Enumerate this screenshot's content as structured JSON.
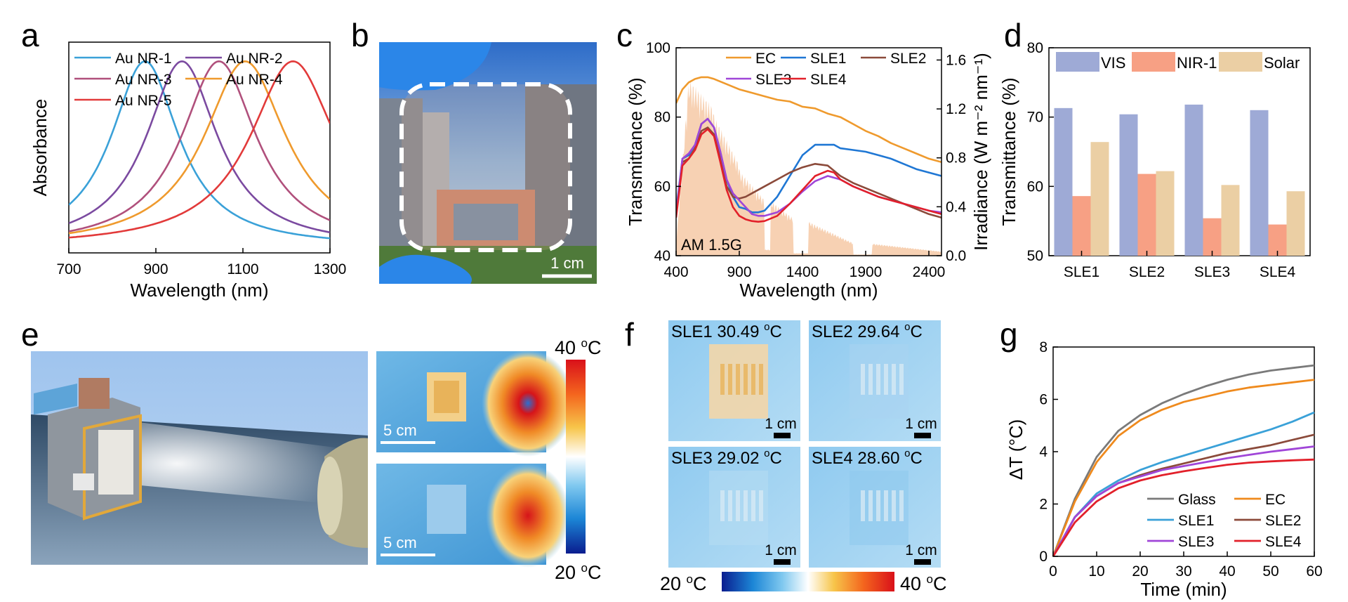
{
  "panels": {
    "a": {
      "label": "a",
      "chart_data": {
        "type": "line",
        "xlabel": "Wavelength (nm)",
        "ylabel": "Absorbance",
        "xlim": [
          700,
          1300
        ],
        "ylim": [
          0,
          1.1
        ],
        "xticks": [
          "700",
          "900",
          "1100",
          "1300"
        ],
        "series": [
          {
            "name": "Au NR-1",
            "color": "#3aa1d8",
            "peak": 875,
            "width": 95
          },
          {
            "name": "Au NR-2",
            "color": "#7b4aa0",
            "peak": 960,
            "width": 100
          },
          {
            "name": "Au NR-3",
            "color": "#b0507c",
            "peak": 1045,
            "width": 105
          },
          {
            "name": "Au NR-4",
            "color": "#ef9a2d",
            "peak": 1105,
            "width": 115
          },
          {
            "name": "Au NR-5",
            "color": "#e23a3a",
            "peak": 1215,
            "width": 120
          }
        ]
      }
    },
    "b": {
      "label": "b",
      "scale_label": "1 cm"
    },
    "c": {
      "label": "c",
      "chart_data": {
        "type": "line",
        "xlabel": "Wavelength (nm)",
        "ylabel": "Transmittance (%)",
        "y2label": "Irradiance (W m⁻² nm⁻¹)",
        "xlim": [
          400,
          2500
        ],
        "ylim": [
          40,
          100
        ],
        "y2lim": [
          0,
          1.7
        ],
        "xticks": [
          "400",
          "900",
          "1400",
          "1900",
          "2400"
        ],
        "yticks": [
          "40",
          "60",
          "80",
          "100"
        ],
        "y2ticks": [
          "0.0",
          "0.4",
          "0.8",
          "1.2",
          "1.6"
        ],
        "annotation": "AM 1.5G",
        "series": [
          {
            "name": "EC",
            "color": "#ef9a2d",
            "x": [
              400,
              450,
              500,
              550,
              600,
              650,
              700,
              800,
              900,
              1000,
              1100,
              1200,
              1300,
              1400,
              1500,
              1600,
              1700,
              1800,
              1900,
              2000,
              2100,
              2200,
              2300,
              2400,
              2500
            ],
            "y": [
              84,
              88,
              90,
              91,
              91.5,
              91.5,
              91,
              89.5,
              88,
              87,
              86,
              85,
              84.5,
              83,
              82.5,
              81,
              80,
              78,
              76,
              74.5,
              72.5,
              71,
              69.5,
              68,
              67
            ]
          },
          {
            "name": "SLE1",
            "color": "#1f77d4",
            "x": [
              400,
              450,
              500,
              550,
              600,
              650,
              700,
              750,
              800,
              850,
              900,
              950,
              1000,
              1050,
              1100,
              1200,
              1300,
              1400,
              1500,
              1600,
              1650,
              1700,
              1800,
              1900,
              2000,
              2100,
              2200,
              2300,
              2400,
              2500
            ],
            "y": [
              53,
              68,
              69,
              72,
              78,
              79.5,
              77,
              70,
              62,
              57,
              54,
              53.5,
              52.5,
              52.5,
              53,
              57,
              63,
              69,
              72,
              72,
              72,
              71,
              70.5,
              70,
              69,
              68,
              66.5,
              65,
              64,
              63
            ]
          },
          {
            "name": "SLE2",
            "color": "#8b4a3a",
            "x": [
              400,
              450,
              500,
              550,
              600,
              650,
              700,
              750,
              800,
              850,
              900,
              950,
              1000,
              1100,
              1200,
              1300,
              1400,
              1500,
              1600,
              1700,
              1800,
              1900,
              2000,
              2100,
              2200,
              2300,
              2400,
              2500
            ],
            "y": [
              52,
              67,
              68,
              71,
              76,
              77,
              75,
              68,
              60,
              57,
              56.5,
              57,
              58,
              60,
              62,
              64,
              65.5,
              66.5,
              66,
              63,
              61,
              59.5,
              58,
              56.5,
              55,
              53.5,
              52,
              51
            ]
          },
          {
            "name": "SLE3",
            "color": "#a046d8",
            "x": [
              400,
              450,
              500,
              550,
              600,
              650,
              700,
              750,
              800,
              850,
              900,
              950,
              1000,
              1050,
              1100,
              1200,
              1300,
              1400,
              1500,
              1600,
              1700,
              1800,
              1900,
              2000,
              2100,
              2200,
              2300,
              2400,
              2500
            ],
            "y": [
              52,
              68,
              69.5,
              72,
              78,
              79.5,
              77,
              70,
              62,
              58,
              56,
              54,
              52,
              51.5,
              51.5,
              52.5,
              55,
              58.5,
              61.5,
              63,
              62,
              60,
              58.5,
              57,
              56,
              55,
              54,
              53,
              52.5
            ]
          },
          {
            "name": "SLE4",
            "color": "#e2202a",
            "x": [
              400,
              450,
              500,
              550,
              600,
              650,
              700,
              750,
              800,
              850,
              900,
              950,
              1000,
              1050,
              1100,
              1200,
              1300,
              1400,
              1500,
              1600,
              1650,
              1700,
              1800,
              1900,
              2000,
              2100,
              2200,
              2300,
              2400,
              2500
            ],
            "y": [
              51,
              66,
              68,
              70.5,
              75,
              76.5,
              74.5,
              67,
              59,
              54,
              51.5,
              50.5,
              50,
              49.8,
              50,
              51.5,
              55,
              59,
              63,
              64.5,
              64,
              62,
              60,
              58.5,
              57,
              56,
              55,
              54,
              53,
              52
            ]
          }
        ]
      }
    },
    "d": {
      "label": "d",
      "chart_data": {
        "type": "bar",
        "ylabel": "Transmittance (%)",
        "ylim": [
          50,
          80
        ],
        "yticks": [
          "50",
          "60",
          "70",
          "80"
        ],
        "categories": [
          "SLE1",
          "SLE2",
          "SLE3",
          "SLE4"
        ],
        "series": [
          {
            "name": "VIS",
            "color": "#9eaad6",
            "values": [
              71.3,
              70.4,
              71.8,
              71.0
            ]
          },
          {
            "name": "NIR-1",
            "color": "#f7a084",
            "values": [
              58.6,
              61.8,
              55.4,
              54.5
            ]
          },
          {
            "name": "Solar",
            "color": "#ebcfa4",
            "values": [
              66.4,
              62.2,
              60.2,
              59.3
            ]
          }
        ]
      }
    },
    "e": {
      "label": "e",
      "scale_top": "5 cm",
      "scale_bottom": "5 cm",
      "colorbar_max": "40 ",
      "colorbar_min": "20 ",
      "unit_o": "o",
      "unit_c": "C"
    },
    "f": {
      "label": "f",
      "tiles": [
        {
          "sample": "SLE1",
          "temp": "30.49 ",
          "scale": "1 cm"
        },
        {
          "sample": "SLE2",
          "temp": "29.64 ",
          "scale": "1 cm"
        },
        {
          "sample": "SLE3",
          "temp": "29.02 ",
          "scale": "1 cm"
        },
        {
          "sample": "SLE4",
          "temp": "28.60 ",
          "scale": "1 cm"
        }
      ],
      "colorbar_min": "20 ",
      "colorbar_max": "40 ",
      "unit_o": "o",
      "unit_c": "C"
    },
    "g": {
      "label": "g",
      "chart_data": {
        "type": "line",
        "xlabel": "Time (min)",
        "ylabel": "ΔT (°C)",
        "xlim": [
          0,
          60
        ],
        "ylim": [
          0,
          8
        ],
        "xticks": [
          "0",
          "10",
          "20",
          "30",
          "40",
          "50",
          "60"
        ],
        "yticks": [
          "0",
          "2",
          "4",
          "6",
          "8"
        ],
        "series": [
          {
            "name": "Glass",
            "color": "#7a7a7a",
            "x": [
              0,
              5,
              10,
              15,
              20,
              25,
              30,
              35,
              40,
              45,
              50,
              55,
              60
            ],
            "y": [
              0,
              2.2,
              3.8,
              4.8,
              5.4,
              5.85,
              6.2,
              6.5,
              6.75,
              6.95,
              7.1,
              7.2,
              7.3
            ]
          },
          {
            "name": "EC",
            "color": "#ef8a1d",
            "x": [
              0,
              5,
              10,
              15,
              20,
              25,
              30,
              35,
              40,
              45,
              50,
              55,
              60
            ],
            "y": [
              0,
              2.1,
              3.6,
              4.6,
              5.2,
              5.6,
              5.9,
              6.1,
              6.3,
              6.45,
              6.55,
              6.65,
              6.75
            ]
          },
          {
            "name": "SLE1",
            "color": "#3aa1d8",
            "x": [
              0,
              5,
              10,
              15,
              20,
              25,
              30,
              35,
              40,
              45,
              50,
              55,
              60
            ],
            "y": [
              0,
              1.5,
              2.4,
              2.9,
              3.3,
              3.6,
              3.85,
              4.1,
              4.35,
              4.6,
              4.85,
              5.15,
              5.5
            ]
          },
          {
            "name": "SLE2",
            "color": "#8b4a3a",
            "x": [
              0,
              5,
              10,
              15,
              20,
              25,
              30,
              35,
              40,
              45,
              50,
              55,
              60
            ],
            "y": [
              0,
              1.5,
              2.3,
              2.8,
              3.1,
              3.35,
              3.55,
              3.75,
              3.95,
              4.1,
              4.25,
              4.45,
              4.65
            ]
          },
          {
            "name": "SLE3",
            "color": "#a046d8",
            "x": [
              0,
              5,
              10,
              15,
              20,
              25,
              30,
              35,
              40,
              45,
              50,
              55,
              60
            ],
            "y": [
              0,
              1.5,
              2.3,
              2.8,
              3.05,
              3.3,
              3.45,
              3.6,
              3.75,
              3.88,
              4.0,
              4.1,
              4.2
            ]
          },
          {
            "name": "SLE4",
            "color": "#e2202a",
            "x": [
              0,
              5,
              10,
              15,
              20,
              25,
              30,
              35,
              40,
              45,
              50,
              55,
              60
            ],
            "y": [
              0,
              1.3,
              2.1,
              2.6,
              2.9,
              3.1,
              3.25,
              3.38,
              3.5,
              3.58,
              3.63,
              3.67,
              3.7
            ]
          }
        ]
      }
    }
  }
}
